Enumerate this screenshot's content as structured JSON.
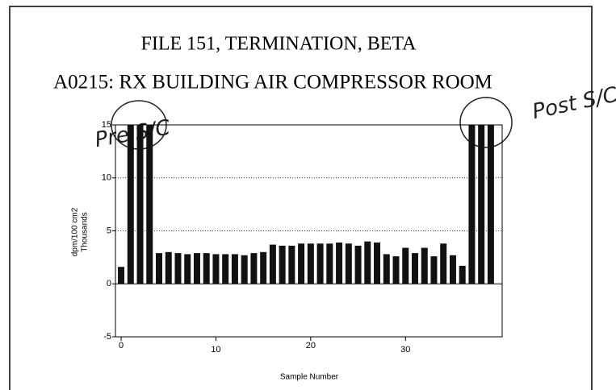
{
  "chart_data": {
    "type": "bar",
    "title": "FILE 151, TERMINATION, BETA",
    "subtitle": "A0215: RX BUILDING AIR COMPRESSOR ROOM",
    "y_label": "dpm/100 cm2",
    "y_label_units": "Thousands",
    "x_label": "Sample Number",
    "annotations": [
      "Pre S/C",
      "Post S/C"
    ],
    "x": [
      0,
      1,
      2,
      3,
      4,
      5,
      6,
      7,
      8,
      9,
      10,
      11,
      12,
      13,
      14,
      15,
      16,
      17,
      18,
      19,
      20,
      21,
      22,
      23,
      24,
      25,
      26,
      27,
      28,
      29,
      30,
      31,
      32,
      33,
      34,
      35,
      36,
      37,
      38,
      39
    ],
    "values": [
      1.6,
      15,
      15,
      15,
      2.9,
      3.0,
      2.9,
      2.8,
      2.9,
      2.9,
      2.8,
      2.8,
      2.8,
      2.7,
      2.9,
      3.0,
      3.7,
      3.6,
      3.6,
      3.8,
      3.8,
      3.8,
      3.8,
      3.9,
      3.8,
      3.6,
      4.0,
      3.9,
      2.8,
      2.6,
      3.4,
      2.9,
      3.4,
      2.6,
      3.8,
      2.7,
      1.7,
      15,
      15,
      15
    ],
    "color": "#111111",
    "xlim": [
      -0.6,
      40.2
    ],
    "xticks": [
      0,
      10,
      20,
      30
    ],
    "ylim": [
      -5,
      15
    ],
    "yticks": [
      -5,
      0,
      5,
      10,
      15
    ],
    "grid": true
  }
}
